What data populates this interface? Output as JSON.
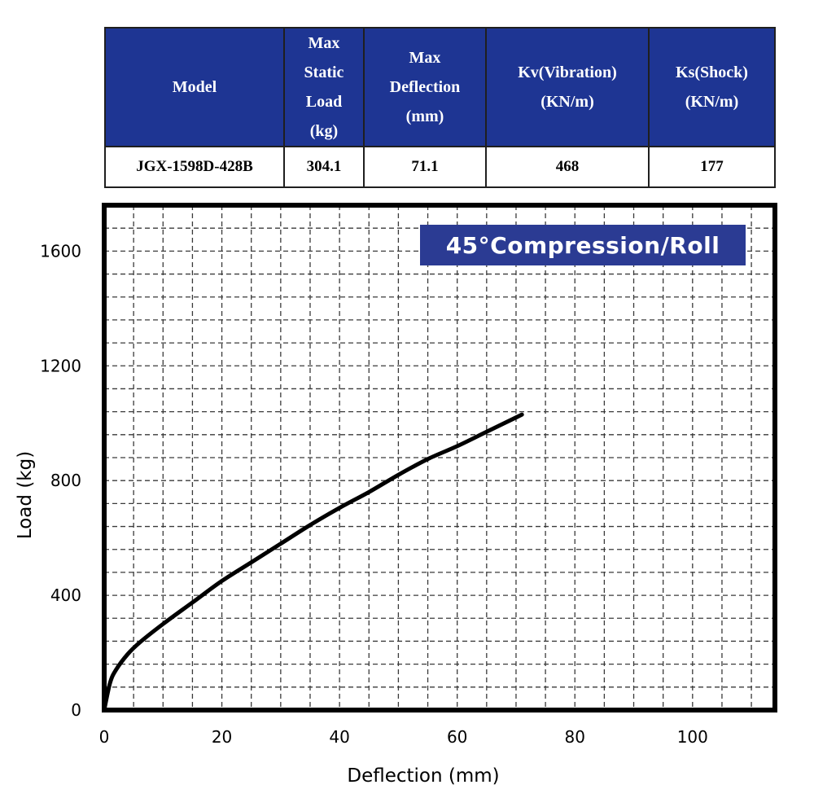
{
  "table": {
    "headers": [
      [
        "Model"
      ],
      [
        "Max",
        "Static",
        "Load",
        "(kg)"
      ],
      [
        "Max",
        "Deflection",
        "(mm)"
      ],
      [
        "Kv(Vibration)",
        "(KN/m)"
      ],
      [
        "Ks(Shock)",
        "(KN/m)"
      ]
    ],
    "row": [
      "JGX-1598D-428B",
      "304.1",
      "71.1",
      "468",
      "177"
    ]
  },
  "chart_data": {
    "type": "line",
    "title": "45°Compression/Roll",
    "xlabel": "Deflection (mm)",
    "ylabel": "Load (kg)",
    "xlim": [
      0,
      114
    ],
    "ylim": [
      0,
      1760
    ],
    "xticks": [
      0,
      20,
      40,
      60,
      80,
      100
    ],
    "yticks": [
      0,
      400,
      800,
      1200,
      1600
    ],
    "grid": true,
    "series": [
      {
        "x": [
          0,
          1,
          2,
          4,
          6,
          10,
          15,
          20,
          25,
          30,
          35,
          40,
          45,
          50,
          55,
          60,
          65,
          71
        ],
        "y": [
          0,
          95,
          140,
          195,
          235,
          300,
          375,
          450,
          515,
          580,
          645,
          705,
          760,
          820,
          875,
          920,
          970,
          1030
        ]
      }
    ],
    "colors": {
      "line": "#000000",
      "title_bg": "#2b3b93",
      "header_bg": "#1e3593"
    }
  }
}
